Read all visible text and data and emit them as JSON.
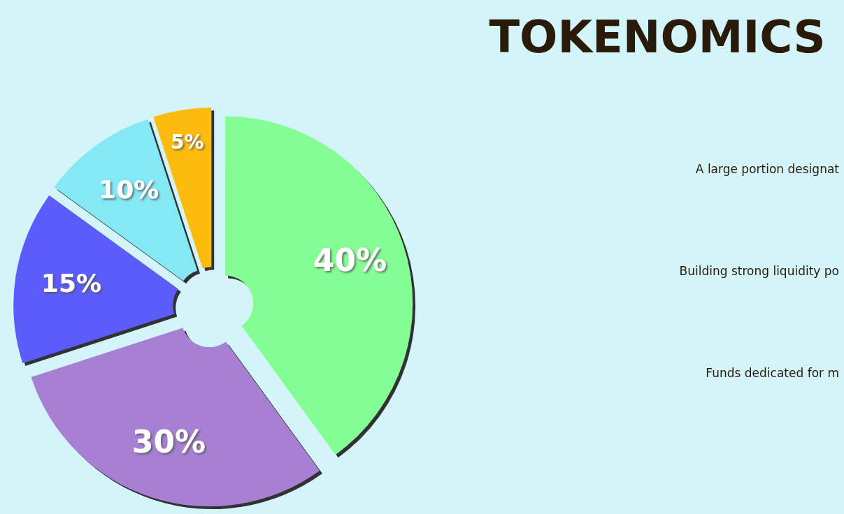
{
  "chart_data": {
    "type": "donut",
    "title": "TOKENOMICS",
    "categories": [
      null,
      null,
      null,
      null,
      null
    ],
    "values": [
      40,
      30,
      15,
      10,
      5
    ],
    "colors": [
      "#84fe94",
      "#a77fd3",
      "#5b5bfb",
      "#84e8f5",
      "#fdbb0f"
    ],
    "value_labels": [
      "40%",
      "30%",
      "15%",
      "10%",
      "5%"
    ],
    "annotations": [
      "A large portion designat",
      "Building strong liquidity po",
      "Funds dedicated for m"
    ]
  }
}
